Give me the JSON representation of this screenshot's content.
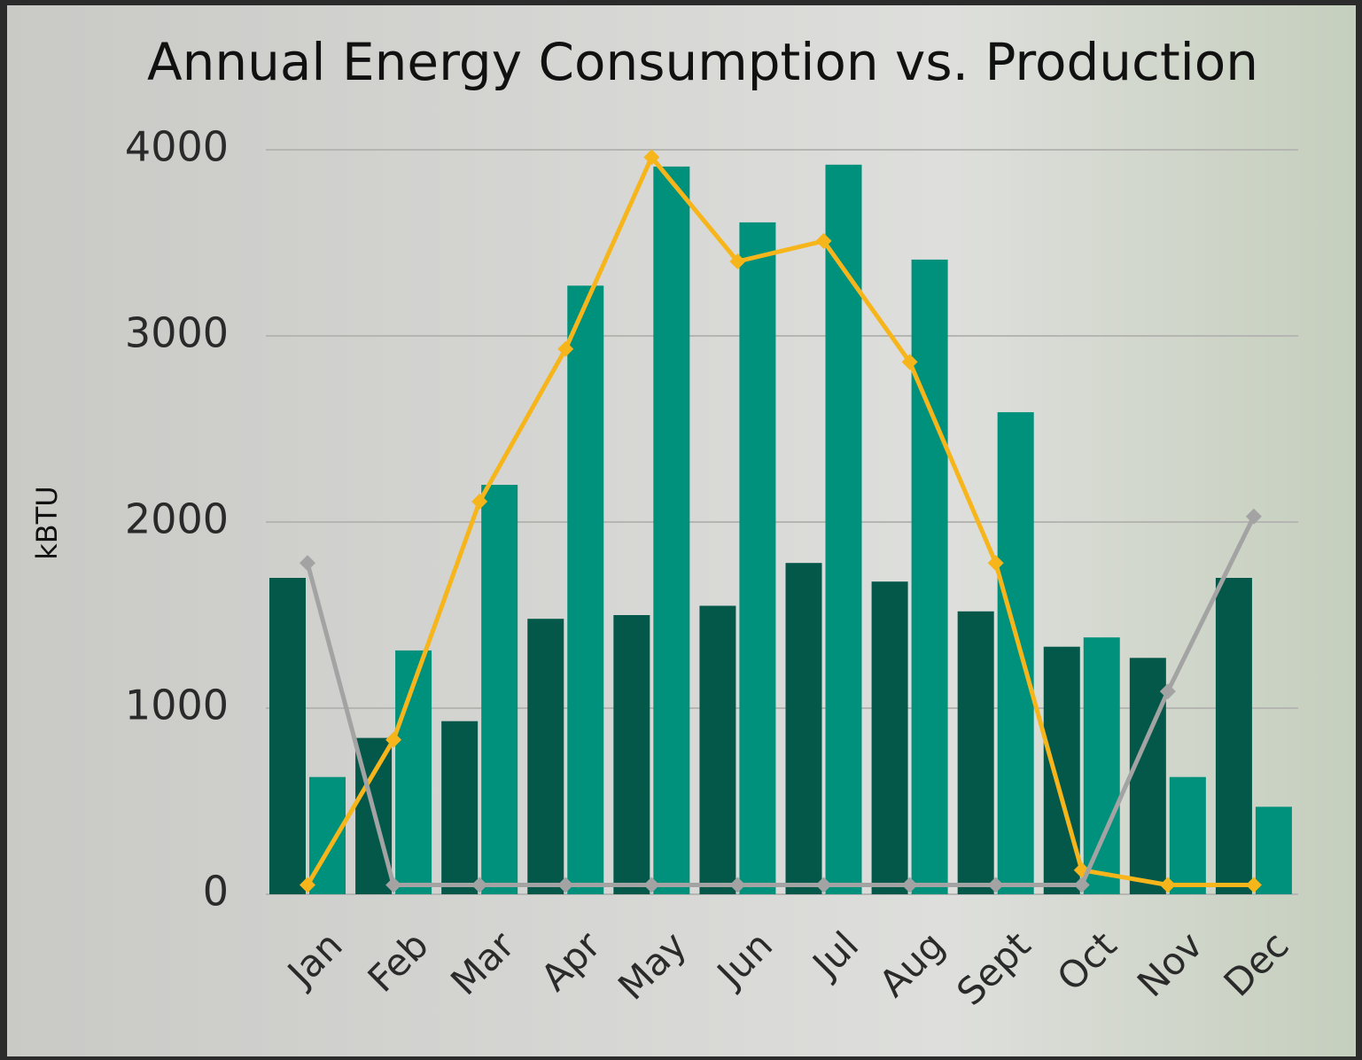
{
  "chart_data": {
    "type": "bar",
    "title": "Annual Energy Consumption vs. Production",
    "y_label": "kBTU",
    "categories": [
      "Jan",
      "Feb",
      "Mar",
      "Apr",
      "May",
      "Jun",
      "Jul",
      "Aug",
      "Sept",
      "Oct",
      "Nov",
      "Dec"
    ],
    "series": [
      {
        "type": "bar",
        "color": "#03584a",
        "values": [
          1700,
          840,
          930,
          1480,
          1500,
          1550,
          1780,
          1680,
          1520,
          1330,
          1270,
          1700
        ]
      },
      {
        "type": "bar",
        "color": "#00917c",
        "values": [
          630,
          1310,
          2200,
          3270,
          3910,
          3610,
          3920,
          3410,
          2590,
          1380,
          630,
          470
        ]
      },
      {
        "type": "line",
        "color": "#f7b51c",
        "values": [
          50,
          830,
          2110,
          2930,
          3960,
          3400,
          3510,
          2860,
          1780,
          130,
          50,
          50
        ]
      },
      {
        "type": "line",
        "color": "#a3a3a3",
        "values": [
          1780,
          50,
          50,
          50,
          50,
          50,
          50,
          50,
          50,
          50,
          1090,
          2030
        ]
      }
    ],
    "ylim": [
      0,
      4000
    ],
    "yticks": [
      0,
      1000,
      2000,
      3000,
      4000
    ],
    "grid": true
  }
}
